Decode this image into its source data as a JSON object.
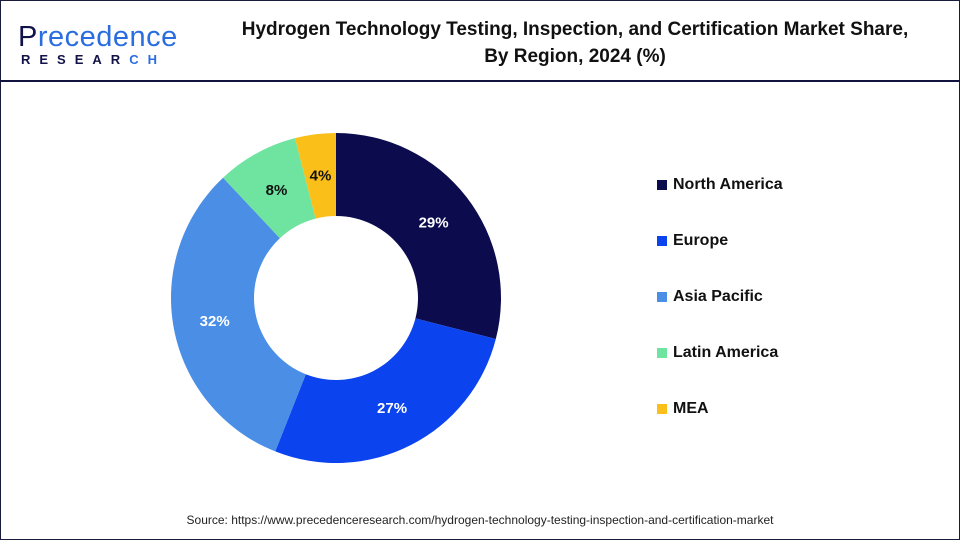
{
  "logo": {
    "main_a": "P",
    "main_b": "recedence",
    "sub_a": "RESEAR",
    "sub_b": "CH"
  },
  "title_line1": "Hydrogen Technology Testing, Inspection, and Certification Market Share,",
  "title_line2": "By Region, 2024 (%)",
  "source": "Source: https://www.precedenceresearch.com/hydrogen-technology-testing-inspection-and-certification-market",
  "chart_data": {
    "type": "pie",
    "subtype": "donut",
    "title": "Hydrogen Technology Testing, Inspection, and Certification Market Share, By Region, 2024 (%)",
    "categories": [
      "North America",
      "Europe",
      "Asia Pacific",
      "Latin America",
      "MEA"
    ],
    "values": [
      29,
      27,
      32,
      8,
      4
    ],
    "labels": [
      "29%",
      "27%",
      "32%",
      "8%",
      "4%"
    ],
    "colors": [
      "#0b0b4d",
      "#0b43ef",
      "#4a8ee6",
      "#6fe3a0",
      "#fbbf1a"
    ],
    "legend_placement": "right"
  }
}
